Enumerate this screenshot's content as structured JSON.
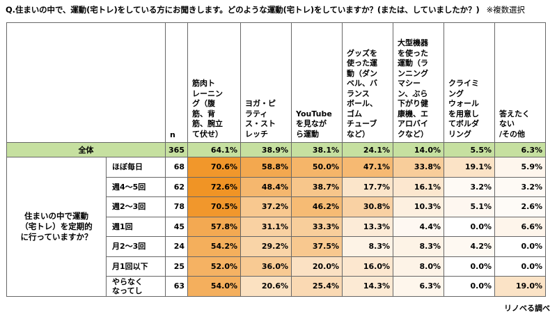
{
  "question": "Q.住まいの中で、運動(宅トレ)をしている方にお聞きします。どのような運動(宅トレ)をしていますか？(または、していましたか？)",
  "note": "※複数選択",
  "source": "リノベる調べ",
  "chart_data": {
    "type": "table",
    "n_header": "n",
    "columns": [
      "筋肉トレーニング（腹筋、背筋、腕立て伏せ）",
      "ヨガ・ピラティス・ストレッチ",
      "YouTubeを見ながら運動",
      "グッズを使った運動（ダンベル、バランスボール、ゴムチューブなど）",
      "大型機器を使った運動（ランニングマシーン、ぶら下がり健康機、エアロバイクなど）",
      "クライミングウォールを用意してボルダリング",
      "答えたくない/その他"
    ],
    "total": {
      "label": "全体",
      "n": 365,
      "values": [
        64.1,
        38.9,
        38.1,
        24.1,
        14.0,
        5.5,
        6.3
      ]
    },
    "group_label": "住まいの中で運動（宅トレ）を定期的に行っていますか？",
    "rows": [
      {
        "label": "ほぼ毎日",
        "n": 68,
        "values": [
          70.6,
          58.8,
          50.0,
          47.1,
          33.8,
          19.1,
          5.9
        ]
      },
      {
        "label": "週4～5回",
        "n": 62,
        "values": [
          72.6,
          48.4,
          38.7,
          17.7,
          16.1,
          3.2,
          3.2
        ]
      },
      {
        "label": "週2～3回",
        "n": 78,
        "values": [
          70.5,
          37.2,
          46.2,
          30.8,
          10.3,
          5.1,
          2.6
        ]
      },
      {
        "label": "週1回",
        "n": 45,
        "values": [
          57.8,
          31.1,
          33.3,
          13.3,
          4.4,
          0.0,
          6.6
        ]
      },
      {
        "label": "月2～3回",
        "n": 24,
        "values": [
          54.2,
          29.2,
          37.5,
          8.3,
          8.3,
          4.2,
          0.0
        ]
      },
      {
        "label": "月1回以下",
        "n": 25,
        "values": [
          52.0,
          36.0,
          20.0,
          16.0,
          8.0,
          0.0,
          0.0
        ]
      },
      {
        "label": "やらなくなってし",
        "n": 63,
        "values": [
          54.0,
          20.6,
          25.4,
          14.3,
          6.3,
          0.0,
          19.0
        ]
      }
    ],
    "unit": "%",
    "heat_color": "#f0901e"
  }
}
